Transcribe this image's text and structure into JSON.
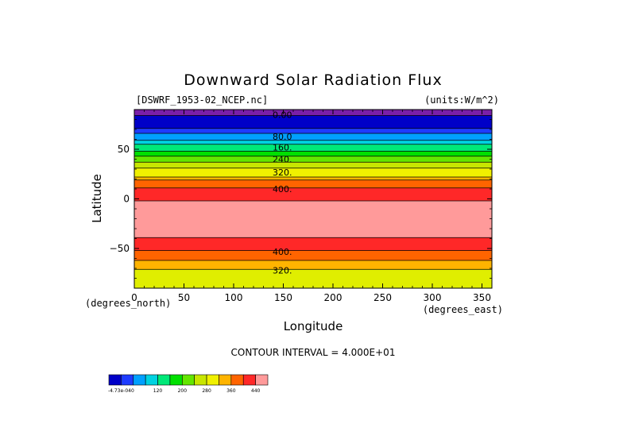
{
  "chart_data": {
    "type": "heatmap",
    "title": "Downward Solar Radiation Flux",
    "subtitle_left": "[DSWRF_1953-02_NCEP.nc]",
    "subtitle_right": "(units:W/m^2)",
    "xlabel": "Longitude",
    "ylabel": "Latitude",
    "x_unit_label": "(degrees_east)",
    "y_unit_label": "(degrees_north)",
    "xlim": [
      0,
      360
    ],
    "ylim": [
      -90,
      90
    ],
    "x_ticks": [
      0,
      50,
      100,
      150,
      200,
      250,
      300,
      350
    ],
    "y_ticks": [
      -50,
      0,
      50
    ],
    "contour_interval_text": "CONTOUR INTERVAL = 4.000E+01",
    "contour_labels": [
      {
        "text": "0.00",
        "lon": 125,
        "lat": 85
      },
      {
        "text": "80.0",
        "lon": 125,
        "lat": 63
      },
      {
        "text": "160.",
        "lon": 125,
        "lat": 52
      },
      {
        "text": "240.",
        "lon": 125,
        "lat": 40
      },
      {
        "text": "320.",
        "lon": 125,
        "lat": 27
      },
      {
        "text": "400.",
        "lon": 125,
        "lat": 10
      },
      {
        "text": "400.",
        "lon": 125,
        "lat": -53
      },
      {
        "text": "320.",
        "lon": 125,
        "lat": -72
      }
    ],
    "bands": [
      {
        "lat_top": 90,
        "lat_bottom": 84,
        "color": "#7a1fa8"
      },
      {
        "lat_top": 84,
        "lat_bottom": 71,
        "color": "#0000c8"
      },
      {
        "lat_top": 71,
        "lat_bottom": 66,
        "color": "#1e3cff"
      },
      {
        "lat_top": 66,
        "lat_bottom": 59,
        "color": "#00a0ff"
      },
      {
        "lat_top": 59,
        "lat_bottom": 55,
        "color": "#00d2e0"
      },
      {
        "lat_top": 55,
        "lat_bottom": 48,
        "color": "#00e878"
      },
      {
        "lat_top": 48,
        "lat_bottom": 43,
        "color": "#00e000"
      },
      {
        "lat_top": 43,
        "lat_bottom": 37,
        "color": "#64e600"
      },
      {
        "lat_top": 37,
        "lat_bottom": 31,
        "color": "#c8e600"
      },
      {
        "lat_top": 31,
        "lat_bottom": 22,
        "color": "#f0f000"
      },
      {
        "lat_top": 22,
        "lat_bottom": 19,
        "color": "#ffb400"
      },
      {
        "lat_top": 19,
        "lat_bottom": 11,
        "color": "#ff6400"
      },
      {
        "lat_top": 11,
        "lat_bottom": -2,
        "color": "#ff2828"
      },
      {
        "lat_top": -2,
        "lat_bottom": -39,
        "color": "#ff9a9a"
      },
      {
        "lat_top": -39,
        "lat_bottom": -52,
        "color": "#ff2828"
      },
      {
        "lat_top": -52,
        "lat_bottom": -62,
        "color": "#ff6400"
      },
      {
        "lat_top": -62,
        "lat_bottom": -71,
        "color": "#ffb400"
      },
      {
        "lat_top": -71,
        "lat_bottom": -90,
        "color": "#e0ee00"
      }
    ],
    "colorbar": {
      "colors": [
        "#0000c8",
        "#1e3cff",
        "#00a0ff",
        "#00d2e0",
        "#00e878",
        "#00e000",
        "#64e600",
        "#c8e600",
        "#f0f000",
        "#ffb400",
        "#ff6400",
        "#ff2828",
        "#ff9a9a"
      ],
      "labels": [
        {
          "text": "-4.73e-040",
          "index": 0
        },
        {
          "text": "120",
          "index": 3
        },
        {
          "text": "200",
          "index": 5
        },
        {
          "text": "280",
          "index": 7
        },
        {
          "text": "360",
          "index": 9
        },
        {
          "text": "440",
          "index": 11
        }
      ]
    }
  }
}
